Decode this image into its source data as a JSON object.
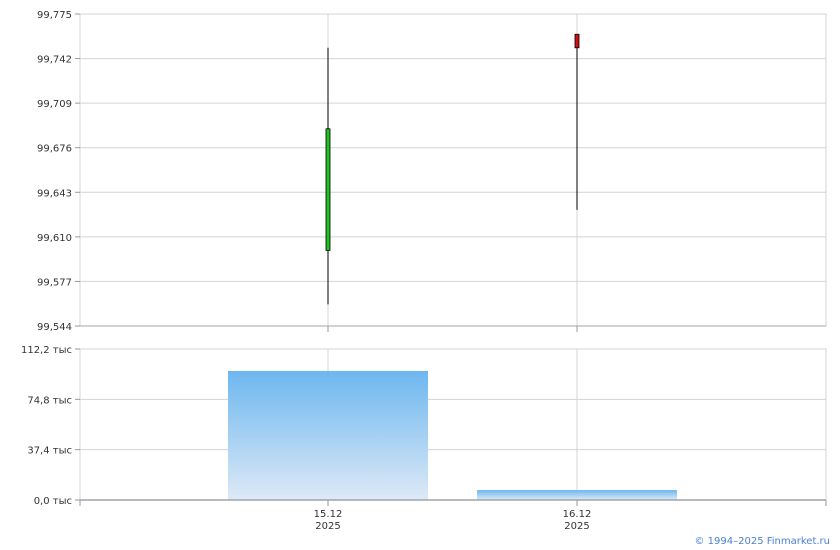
{
  "chart_data": [
    {
      "type": "candlestick",
      "categories": [
        "15.12 2025",
        "16.12 2025"
      ],
      "ylim": [
        99.544,
        99.775
      ],
      "yticks": [
        "99,544",
        "99,577",
        "99,610",
        "99,643",
        "99,676",
        "99,709",
        "99,742",
        "99,775"
      ],
      "grid": true,
      "series": [
        {
          "open": 99.6,
          "high": 99.75,
          "low": 99.56,
          "close": 99.69
        },
        {
          "open": 99.76,
          "high": 99.76,
          "low": 99.63,
          "close": 99.75
        }
      ],
      "colors": {
        "up": "#22c022",
        "down": "#d01010"
      }
    },
    {
      "type": "bar",
      "categories": [
        "15.12 2025",
        "16.12 2025"
      ],
      "xticks": [
        [
          "15.12",
          "2025"
        ],
        [
          "16.12",
          "2025"
        ]
      ],
      "values": [
        95.9,
        7.4
      ],
      "unit": "тыс",
      "ylim": [
        0,
        112.2
      ],
      "yticks": [
        "0,0 тыс",
        "37,4 тыс",
        "74,8 тыс",
        "112,2 тыс"
      ],
      "grid": true,
      "colors": {
        "top": "#6db7ef",
        "bottom": "#dde9f6"
      }
    }
  ],
  "credit": "© 1994–2025 Finmarket.ru"
}
